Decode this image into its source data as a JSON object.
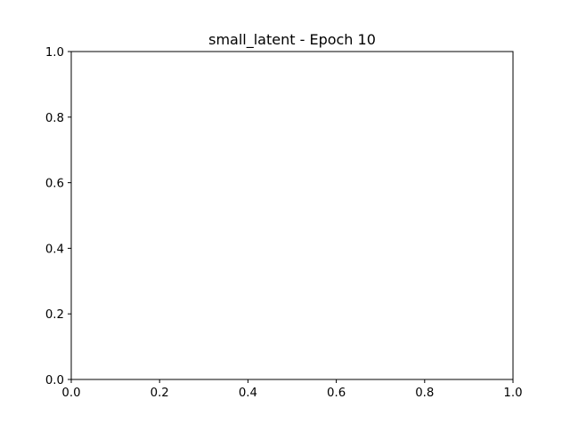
{
  "chart_data": {
    "type": "scatter",
    "title": "small_latent - Epoch 10",
    "xlabel": "",
    "ylabel": "",
    "xlim": [
      0.0,
      1.0
    ],
    "ylim": [
      0.0,
      1.0
    ],
    "xticks": [
      0.0,
      0.2,
      0.4,
      0.6,
      0.8,
      1.0
    ],
    "yticks": [
      0.0,
      0.2,
      0.4,
      0.6,
      0.8,
      1.0
    ],
    "xtick_labels": [
      "0.0",
      "0.2",
      "0.4",
      "0.6",
      "0.8",
      "1.0"
    ],
    "ytick_labels": [
      "0.0",
      "0.2",
      "0.4",
      "0.6",
      "0.8",
      "1.0"
    ],
    "grid": false,
    "series": []
  }
}
